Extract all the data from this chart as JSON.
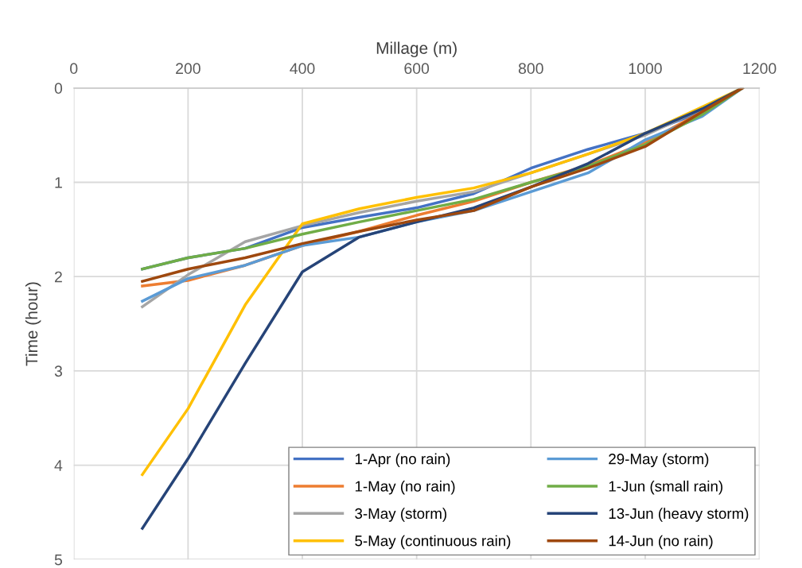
{
  "chart_data": {
    "type": "line",
    "xlabel": "Millage (m)",
    "ylabel": "Time (hour)",
    "x": [
      120,
      200,
      300,
      400,
      500,
      600,
      700,
      800,
      900,
      1000,
      1100,
      1170
    ],
    "xlim": [
      0,
      1200
    ],
    "xticks": [
      0,
      200,
      400,
      600,
      800,
      1000,
      1200
    ],
    "ylim": [
      5,
      0
    ],
    "yticks": [
      0,
      1,
      2,
      3,
      4,
      5
    ],
    "grid": true,
    "legend": "bottom right",
    "marker": "none",
    "line_style": "solid",
    "series": [
      {
        "name": "1-Apr (no rain)",
        "color": "#4472c4",
        "values": [
          1.92,
          1.8,
          1.7,
          1.48,
          1.37,
          1.27,
          1.12,
          0.85,
          0.65,
          0.48,
          0.25,
          0
        ]
      },
      {
        "name": "1-May (no rain)",
        "color": "#ed7d31",
        "values": [
          2.1,
          2.04,
          1.88,
          1.67,
          1.52,
          1.35,
          1.2,
          1.0,
          0.82,
          0.58,
          0.25,
          0
        ]
      },
      {
        "name": "3-May (storm)",
        "color": "#a5a5a5",
        "values": [
          2.32,
          1.98,
          1.63,
          1.46,
          1.32,
          1.2,
          1.1,
          0.9,
          0.7,
          0.5,
          0.22,
          0
        ]
      },
      {
        "name": "5-May (continuous rain)",
        "color": "#ffc000",
        "values": [
          4.1,
          3.4,
          2.3,
          1.44,
          1.28,
          1.16,
          1.06,
          0.9,
          0.7,
          0.48,
          0.2,
          0
        ]
      },
      {
        "name": "29-May (storm)",
        "color": "#5b9bd5",
        "values": [
          2.26,
          2.02,
          1.88,
          1.67,
          1.58,
          1.42,
          1.3,
          1.1,
          0.9,
          0.55,
          0.3,
          0
        ]
      },
      {
        "name": "1-Jun (small rain)",
        "color": "#70ad47",
        "values": [
          1.92,
          1.8,
          1.7,
          1.55,
          1.42,
          1.3,
          1.18,
          1.0,
          0.83,
          0.6,
          0.28,
          0
        ]
      },
      {
        "name": "13-Jun (heavy storm)",
        "color": "#264478",
        "values": [
          4.67,
          3.93,
          2.92,
          1.95,
          1.58,
          1.42,
          1.27,
          1.05,
          0.8,
          0.48,
          0.22,
          0
        ]
      },
      {
        "name": "14-Jun (no rain)",
        "color": "#9e480e",
        "values": [
          2.05,
          1.92,
          1.8,
          1.65,
          1.52,
          1.4,
          1.3,
          1.05,
          0.85,
          0.62,
          0.25,
          0
        ]
      }
    ]
  }
}
